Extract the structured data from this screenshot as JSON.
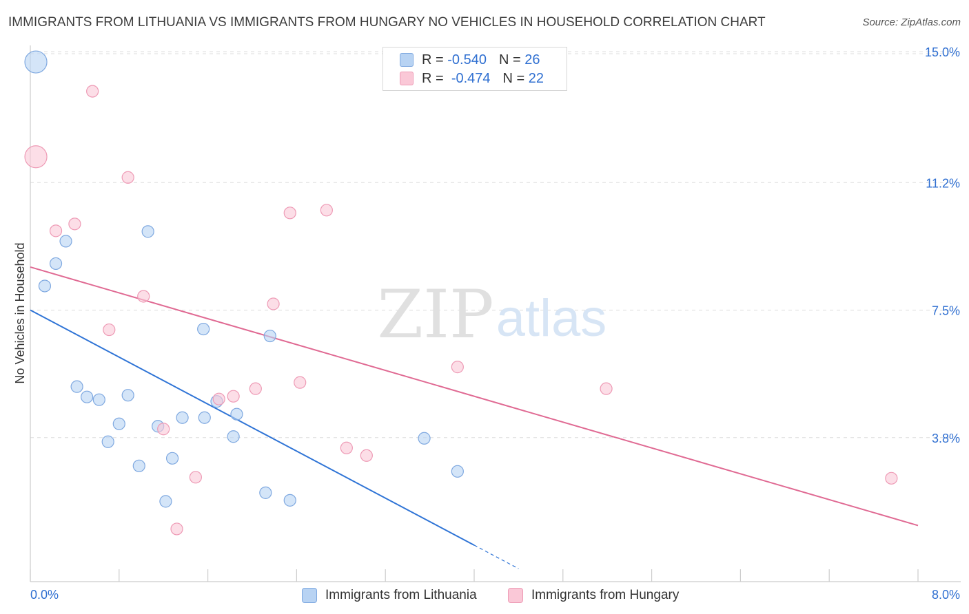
{
  "header": {
    "title": "IMMIGRANTS FROM LITHUANIA VS IMMIGRANTS FROM HUNGARY NO VEHICLES IN HOUSEHOLD CORRELATION CHART",
    "source": "Source: ZipAtlas.com"
  },
  "stats_legend": {
    "row1": {
      "r_label": "R =",
      "r_value": "-0.540",
      "n_label": "N =",
      "n_value": "26"
    },
    "row2": {
      "r_label": "R =",
      "r_value": "-0.474",
      "n_label": "N =",
      "n_value": "22"
    }
  },
  "watermark": {
    "zip": "ZIP",
    "atlas": "atlas"
  },
  "colors": {
    "blue_fill": "#b8d3f3",
    "blue_stroke": "#7ea8e0",
    "blue_line": "#2f74d6",
    "pink_fill": "#fac8d7",
    "pink_stroke": "#ee9ab5",
    "pink_line": "#e06a93",
    "axis_label": "#2f6fd1",
    "grid": "#dcdcdc"
  },
  "chart_data": {
    "type": "scatter",
    "title": "IMMIGRANTS FROM LITHUANIA VS IMMIGRANTS FROM HUNGARY NO VEHICLES IN HOUSEHOLD CORRELATION CHART",
    "xlabel": "",
    "ylabel": "No Vehicles in Household",
    "xlim": [
      0,
      8.0
    ],
    "ylim": [
      0,
      15.3
    ],
    "x_tick_labels": [
      "0.0%",
      "8.0%"
    ],
    "y_ticks": [
      {
        "value": 15.0,
        "label": "15.0%"
      },
      {
        "value": 11.2,
        "label": "11.2%"
      },
      {
        "value": 7.5,
        "label": "7.5%"
      },
      {
        "value": 3.8,
        "label": "3.8%"
      }
    ],
    "legend_position": "bottom-center",
    "series": [
      {
        "name": "Immigrants from Lithuania",
        "color": "blue",
        "r": -0.54,
        "n": 26,
        "trend": {
          "x0": 0.0,
          "y0": 7.5,
          "x1": 4.0,
          "y1": 0.68,
          "dash_to_x": 4.4
        },
        "points": [
          {
            "x": 0.05,
            "y": 14.7,
            "size": "large"
          },
          {
            "x": 0.13,
            "y": 8.2
          },
          {
            "x": 0.23,
            "y": 8.85
          },
          {
            "x": 0.32,
            "y": 9.5
          },
          {
            "x": 1.06,
            "y": 9.78
          },
          {
            "x": 0.42,
            "y": 5.28
          },
          {
            "x": 0.51,
            "y": 4.98
          },
          {
            "x": 0.62,
            "y": 4.9
          },
          {
            "x": 0.88,
            "y": 5.03
          },
          {
            "x": 0.8,
            "y": 4.2
          },
          {
            "x": 0.7,
            "y": 3.68
          },
          {
            "x": 0.98,
            "y": 2.98
          },
          {
            "x": 1.15,
            "y": 4.13
          },
          {
            "x": 1.37,
            "y": 4.38
          },
          {
            "x": 1.57,
            "y": 4.38
          },
          {
            "x": 1.28,
            "y": 3.2
          },
          {
            "x": 1.22,
            "y": 1.95
          },
          {
            "x": 1.56,
            "y": 6.95
          },
          {
            "x": 1.68,
            "y": 4.85
          },
          {
            "x": 1.86,
            "y": 4.48
          },
          {
            "x": 1.83,
            "y": 3.83
          },
          {
            "x": 2.16,
            "y": 6.75
          },
          {
            "x": 2.12,
            "y": 2.2
          },
          {
            "x": 2.34,
            "y": 1.98
          },
          {
            "x": 3.55,
            "y": 3.78
          },
          {
            "x": 3.85,
            "y": 2.82
          }
        ]
      },
      {
        "name": "Immigrants from Hungary",
        "color": "pink",
        "r": -0.474,
        "n": 22,
        "trend": {
          "x0": 0.0,
          "y0": 8.75,
          "x1": 8.0,
          "y1": 1.25
        },
        "points": [
          {
            "x": 0.05,
            "y": 11.95,
            "size": "large"
          },
          {
            "x": 0.56,
            "y": 13.85
          },
          {
            "x": 0.88,
            "y": 11.35
          },
          {
            "x": 0.23,
            "y": 9.8
          },
          {
            "x": 0.4,
            "y": 10.0
          },
          {
            "x": 1.02,
            "y": 7.9
          },
          {
            "x": 0.71,
            "y": 6.93
          },
          {
            "x": 2.34,
            "y": 10.32
          },
          {
            "x": 2.67,
            "y": 10.4
          },
          {
            "x": 2.19,
            "y": 7.68
          },
          {
            "x": 2.03,
            "y": 5.22
          },
          {
            "x": 2.43,
            "y": 5.4
          },
          {
            "x": 1.83,
            "y": 5.0
          },
          {
            "x": 1.7,
            "y": 4.92
          },
          {
            "x": 3.85,
            "y": 5.85
          },
          {
            "x": 5.19,
            "y": 5.22
          },
          {
            "x": 1.2,
            "y": 4.05
          },
          {
            "x": 1.49,
            "y": 2.65
          },
          {
            "x": 1.32,
            "y": 1.15
          },
          {
            "x": 2.85,
            "y": 3.5
          },
          {
            "x": 3.03,
            "y": 3.28
          },
          {
            "x": 7.76,
            "y": 2.62
          }
        ]
      }
    ]
  }
}
